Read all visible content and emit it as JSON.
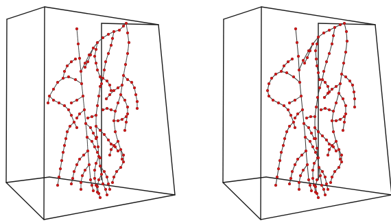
{
  "figure": {
    "panels": [
      {
        "id": "left",
        "node_color": "#d21a1a",
        "edge_color": "#3a3a3a",
        "box_color": "#1a1a1a"
      },
      {
        "id": "right",
        "node_color": "#d21a1a",
        "edge_color": "#3a3a3a",
        "box_color": "#1a1a1a"
      }
    ]
  }
}
